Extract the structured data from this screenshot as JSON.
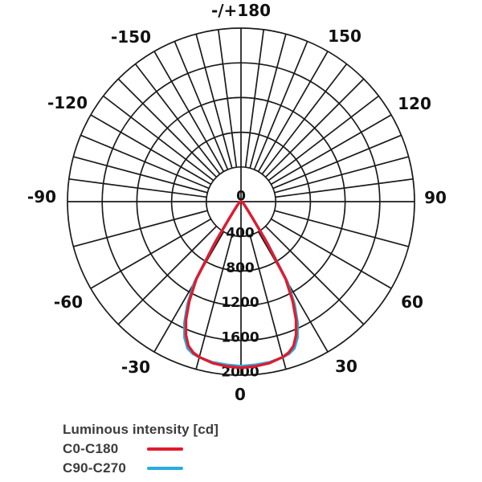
{
  "page": {
    "background": "#ffffff"
  },
  "colors": {
    "grid": "#1b1b1b",
    "chart_label": "#111111",
    "legend_text": "#3c3c3b",
    "c0_c180": "#e01b2c",
    "c90_c270": "#29aae1"
  },
  "legend": {
    "title": "Luminous intensity [cd]",
    "items": [
      {
        "label": "C0-C180",
        "color": "#e01b2c"
      },
      {
        "label": "C90-C270",
        "color": "#29aae1"
      }
    ]
  },
  "chart_data": {
    "type": "line",
    "subtype": "polar-photometric",
    "title": "Luminous intensity [cd]",
    "units": "cd",
    "grid": true,
    "legend_position": "bottom-left",
    "angle_axis": {
      "unit": "deg",
      "zero_direction": "down",
      "labels": [
        "-/+180",
        "-150",
        "150",
        "-120",
        "120",
        "-90",
        "90",
        "-60",
        "60",
        "-30",
        "30",
        "0"
      ],
      "spoke_step_upper_deg": 7.5,
      "spoke_step_lower_deg": 15
    },
    "radial_axis": {
      "ticks": [
        0,
        400,
        800,
        1200,
        1600,
        2000
      ],
      "max": 2000,
      "tick_label_direction_deg": 0
    },
    "series": [
      {
        "name": "C0-C180",
        "color": "#e01b2c",
        "gamma_deg": [
          -90,
          -80,
          -70,
          -60,
          -50,
          -45,
          -40,
          -37.5,
          -35,
          -32.5,
          -30,
          -27.5,
          -25,
          -22.5,
          -20,
          -17.5,
          -15,
          -10,
          -5,
          0,
          5,
          10,
          15,
          17.5,
          20,
          22.5,
          25,
          27.5,
          30,
          32.5,
          35,
          37.5,
          40,
          45,
          50,
          60,
          70,
          80,
          90
        ],
        "intensity_cd": [
          0,
          5,
          10,
          20,
          40,
          60,
          100,
          140,
          230,
          520,
          1030,
          1290,
          1500,
          1660,
          1770,
          1825,
          1855,
          1890,
          1905,
          1915,
          1905,
          1890,
          1855,
          1825,
          1770,
          1660,
          1500,
          1290,
          1030,
          520,
          230,
          140,
          100,
          60,
          40,
          20,
          10,
          5,
          0
        ]
      },
      {
        "name": "C90-C270",
        "color": "#29aae1",
        "gamma_deg": [
          -90,
          -80,
          -70,
          -60,
          -50,
          -45,
          -40,
          -37.5,
          -35,
          -32.5,
          -30,
          -27.5,
          -25,
          -22.5,
          -20,
          -17.5,
          -15,
          -10,
          -5,
          0,
          5,
          10,
          15,
          17.5,
          20,
          22.5,
          25,
          27.5,
          30,
          32.5,
          35,
          37.5,
          40,
          45,
          50,
          60,
          70,
          80,
          90
        ],
        "intensity_cd": [
          0,
          5,
          10,
          20,
          41,
          62,
          105,
          148,
          248,
          575,
          1080,
          1340,
          1545,
          1700,
          1800,
          1840,
          1858,
          1880,
          1888,
          1895,
          1888,
          1880,
          1858,
          1840,
          1800,
          1700,
          1545,
          1340,
          1080,
          575,
          248,
          148,
          105,
          62,
          41,
          20,
          10,
          5,
          0
        ]
      }
    ]
  }
}
